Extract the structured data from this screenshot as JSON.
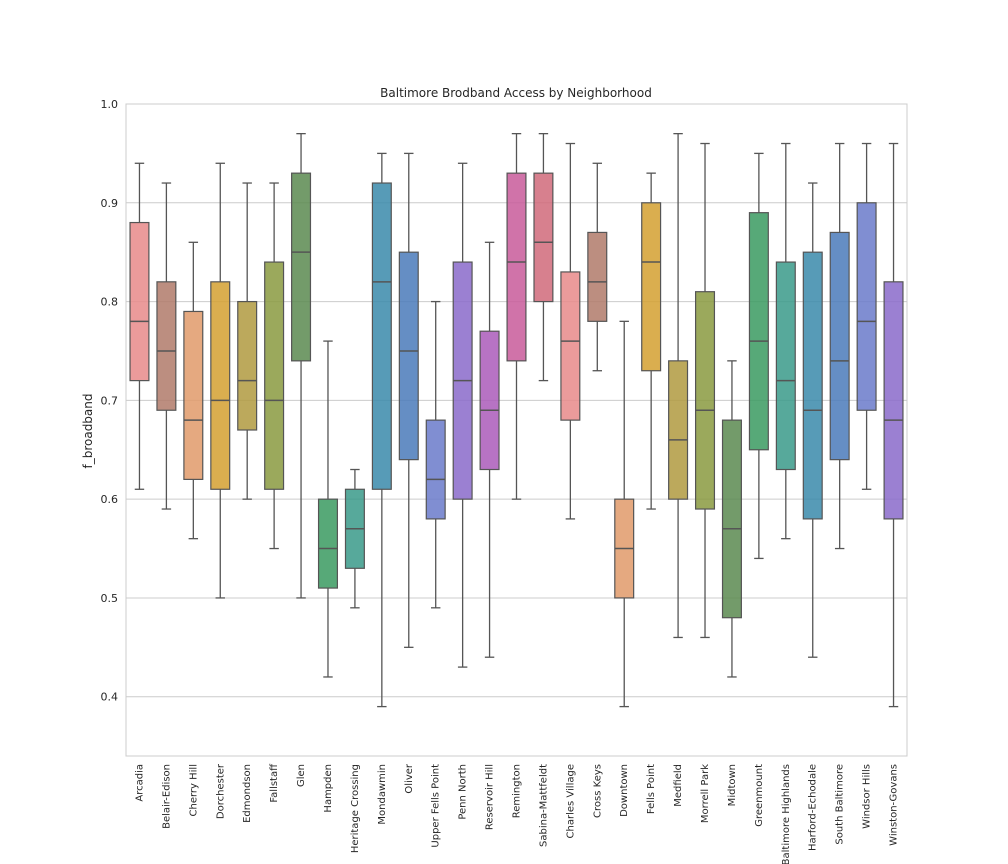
{
  "chart_data": {
    "type": "box",
    "title": "Baltimore Brodband Access by Neighborhood",
    "xlabel": "",
    "ylabel": "f_broadband",
    "ylim": [
      0.34,
      1.0
    ],
    "yticks": [
      "0.4",
      "0.5",
      "0.6",
      "0.7",
      "0.8",
      "0.9",
      "1.0"
    ],
    "grid": "horizontal",
    "categories": [
      "Arcadia",
      "Belair-Edison",
      "Cherry Hill",
      "Dorchester",
      "Edmondson",
      "Fallstaff",
      "Glen",
      "Hampden",
      "Heritage Crossing",
      "Mondawmin",
      "Oliver",
      "Upper Fells Point",
      "Penn North",
      "Reservoir Hill",
      "Remington",
      "Sabina-Mattfeldt",
      "Charles Village",
      "Cross Keys",
      "Downtown",
      "Fells Point",
      "Medfield",
      "Morrell Park",
      "Midtown",
      "Greenmount",
      "Baltimore Highlands",
      "Harford-Echodale",
      "South Baltimore",
      "Windsor Hills",
      "Winston-Govans"
    ],
    "boxes": [
      {
        "min": 0.61,
        "q1": 0.72,
        "median": 0.78,
        "q3": 0.88,
        "max": 0.94
      },
      {
        "min": 0.59,
        "q1": 0.69,
        "median": 0.75,
        "q3": 0.82,
        "max": 0.92
      },
      {
        "min": 0.56,
        "q1": 0.62,
        "median": 0.68,
        "q3": 0.79,
        "max": 0.86
      },
      {
        "min": 0.5,
        "q1": 0.61,
        "median": 0.7,
        "q3": 0.82,
        "max": 0.94
      },
      {
        "min": 0.6,
        "q1": 0.67,
        "median": 0.72,
        "q3": 0.8,
        "max": 0.92
      },
      {
        "min": 0.55,
        "q1": 0.61,
        "median": 0.7,
        "q3": 0.84,
        "max": 0.92
      },
      {
        "min": 0.5,
        "q1": 0.74,
        "median": 0.85,
        "q3": 0.93,
        "max": 0.97
      },
      {
        "min": 0.42,
        "q1": 0.51,
        "median": 0.55,
        "q3": 0.6,
        "max": 0.76
      },
      {
        "min": 0.49,
        "q1": 0.53,
        "median": 0.57,
        "q3": 0.61,
        "max": 0.63
      },
      {
        "min": 0.39,
        "q1": 0.61,
        "median": 0.82,
        "q3": 0.92,
        "max": 0.95
      },
      {
        "min": 0.45,
        "q1": 0.64,
        "median": 0.75,
        "q3": 0.85,
        "max": 0.95
      },
      {
        "min": 0.49,
        "q1": 0.58,
        "median": 0.62,
        "q3": 0.68,
        "max": 0.8
      },
      {
        "min": 0.43,
        "q1": 0.6,
        "median": 0.72,
        "q3": 0.84,
        "max": 0.94
      },
      {
        "min": 0.44,
        "q1": 0.63,
        "median": 0.69,
        "q3": 0.77,
        "max": 0.86
      },
      {
        "min": 0.6,
        "q1": 0.74,
        "median": 0.84,
        "q3": 0.93,
        "max": 0.97
      },
      {
        "min": 0.72,
        "q1": 0.8,
        "median": 0.86,
        "q3": 0.93,
        "max": 0.97
      },
      {
        "min": 0.58,
        "q1": 0.68,
        "median": 0.76,
        "q3": 0.83,
        "max": 0.96
      },
      {
        "min": 0.73,
        "q1": 0.78,
        "median": 0.82,
        "q3": 0.87,
        "max": 0.94
      },
      {
        "min": 0.39,
        "q1": 0.5,
        "median": 0.55,
        "q3": 0.6,
        "max": 0.78
      },
      {
        "min": 0.59,
        "q1": 0.73,
        "median": 0.84,
        "q3": 0.9,
        "max": 0.93
      },
      {
        "min": 0.46,
        "q1": 0.6,
        "median": 0.66,
        "q3": 0.74,
        "max": 0.97
      },
      {
        "min": 0.46,
        "q1": 0.59,
        "median": 0.69,
        "q3": 0.81,
        "max": 0.96
      },
      {
        "min": 0.42,
        "q1": 0.48,
        "median": 0.57,
        "q3": 0.68,
        "max": 0.74
      },
      {
        "min": 0.54,
        "q1": 0.65,
        "median": 0.76,
        "q3": 0.89,
        "max": 0.95
      },
      {
        "min": 0.56,
        "q1": 0.63,
        "median": 0.72,
        "q3": 0.84,
        "max": 0.96
      },
      {
        "min": 0.44,
        "q1": 0.58,
        "median": 0.69,
        "q3": 0.85,
        "max": 0.92
      },
      {
        "min": 0.55,
        "q1": 0.64,
        "median": 0.74,
        "q3": 0.87,
        "max": 0.96
      },
      {
        "min": 0.61,
        "q1": 0.69,
        "median": 0.78,
        "q3": 0.9,
        "max": 0.96
      },
      {
        "min": 0.39,
        "q1": 0.58,
        "median": 0.68,
        "q3": 0.82,
        "max": 0.96
      }
    ],
    "colors": [
      "#e88a8a",
      "#b07a6a",
      "#e09a6a",
      "#d4a030",
      "#b09a40",
      "#8a9a40",
      "#5a8a50",
      "#3a9a60",
      "#3a9a8a",
      "#3a8aaa",
      "#4a7aba",
      "#6a7aca",
      "#8a6aca",
      "#aa5aba",
      "#c85a9a",
      "#d06a7a"
    ]
  }
}
